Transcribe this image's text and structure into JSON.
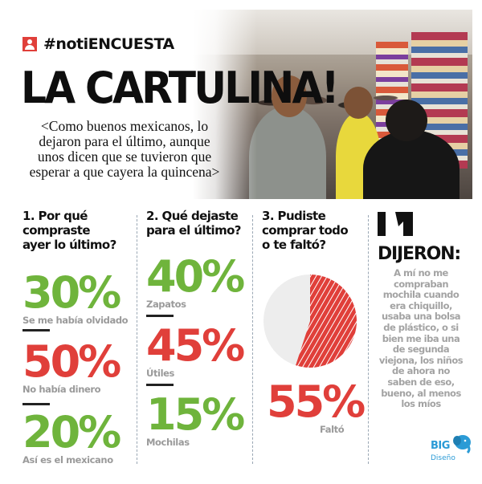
{
  "header": {
    "tag": "#notiENCUESTA",
    "title": "LA CARTULINA!",
    "subtitle": "<Como buenos mexicanos, lo dejaron para el último, aunque unos dicen que se tuvieron que esperar a que cayera la quincena>"
  },
  "q1": {
    "question": "1. Por qué compraste ayer lo último?",
    "answers": [
      {
        "percent": "30%",
        "label": "Se me había olvidado",
        "color": "#6fb43c"
      },
      {
        "percent": "50%",
        "label": "No había dinero",
        "color": "#e03f3a"
      },
      {
        "percent": "20%",
        "label": "Así es el mexicano",
        "color": "#6fb43c"
      }
    ]
  },
  "q2": {
    "question": "2. Qué dejaste para el último?",
    "answers": [
      {
        "percent": "40%",
        "label": "Zapatos",
        "color": "#6fb43c"
      },
      {
        "percent": "45%",
        "label": "Útiles",
        "color": "#e03f3a"
      },
      {
        "percent": "15%",
        "label": "Mochilas",
        "color": "#6fb43c"
      }
    ]
  },
  "q3": {
    "question": "3. Pudiste comprar todo o te faltó?",
    "percent": "55%",
    "label": "Faltó",
    "value": 55,
    "colors": {
      "highlight": "#e03f3a",
      "rest": "#ededed"
    }
  },
  "quote": {
    "heading": "DIJERON:",
    "text": "A mí no me compraban mochila cuando era chiquillo, usaba una bolsa de plástico, o si bien me iba una de segunda viejona, los niños de ahora no saben de eso, bueno, al menos los míos"
  },
  "logo": {
    "big": "BIG",
    "small": "Diseño",
    "color": "#2b9bd6"
  },
  "icons": [
    "user-icon",
    "quote-icon",
    "elephant-icon"
  ]
}
